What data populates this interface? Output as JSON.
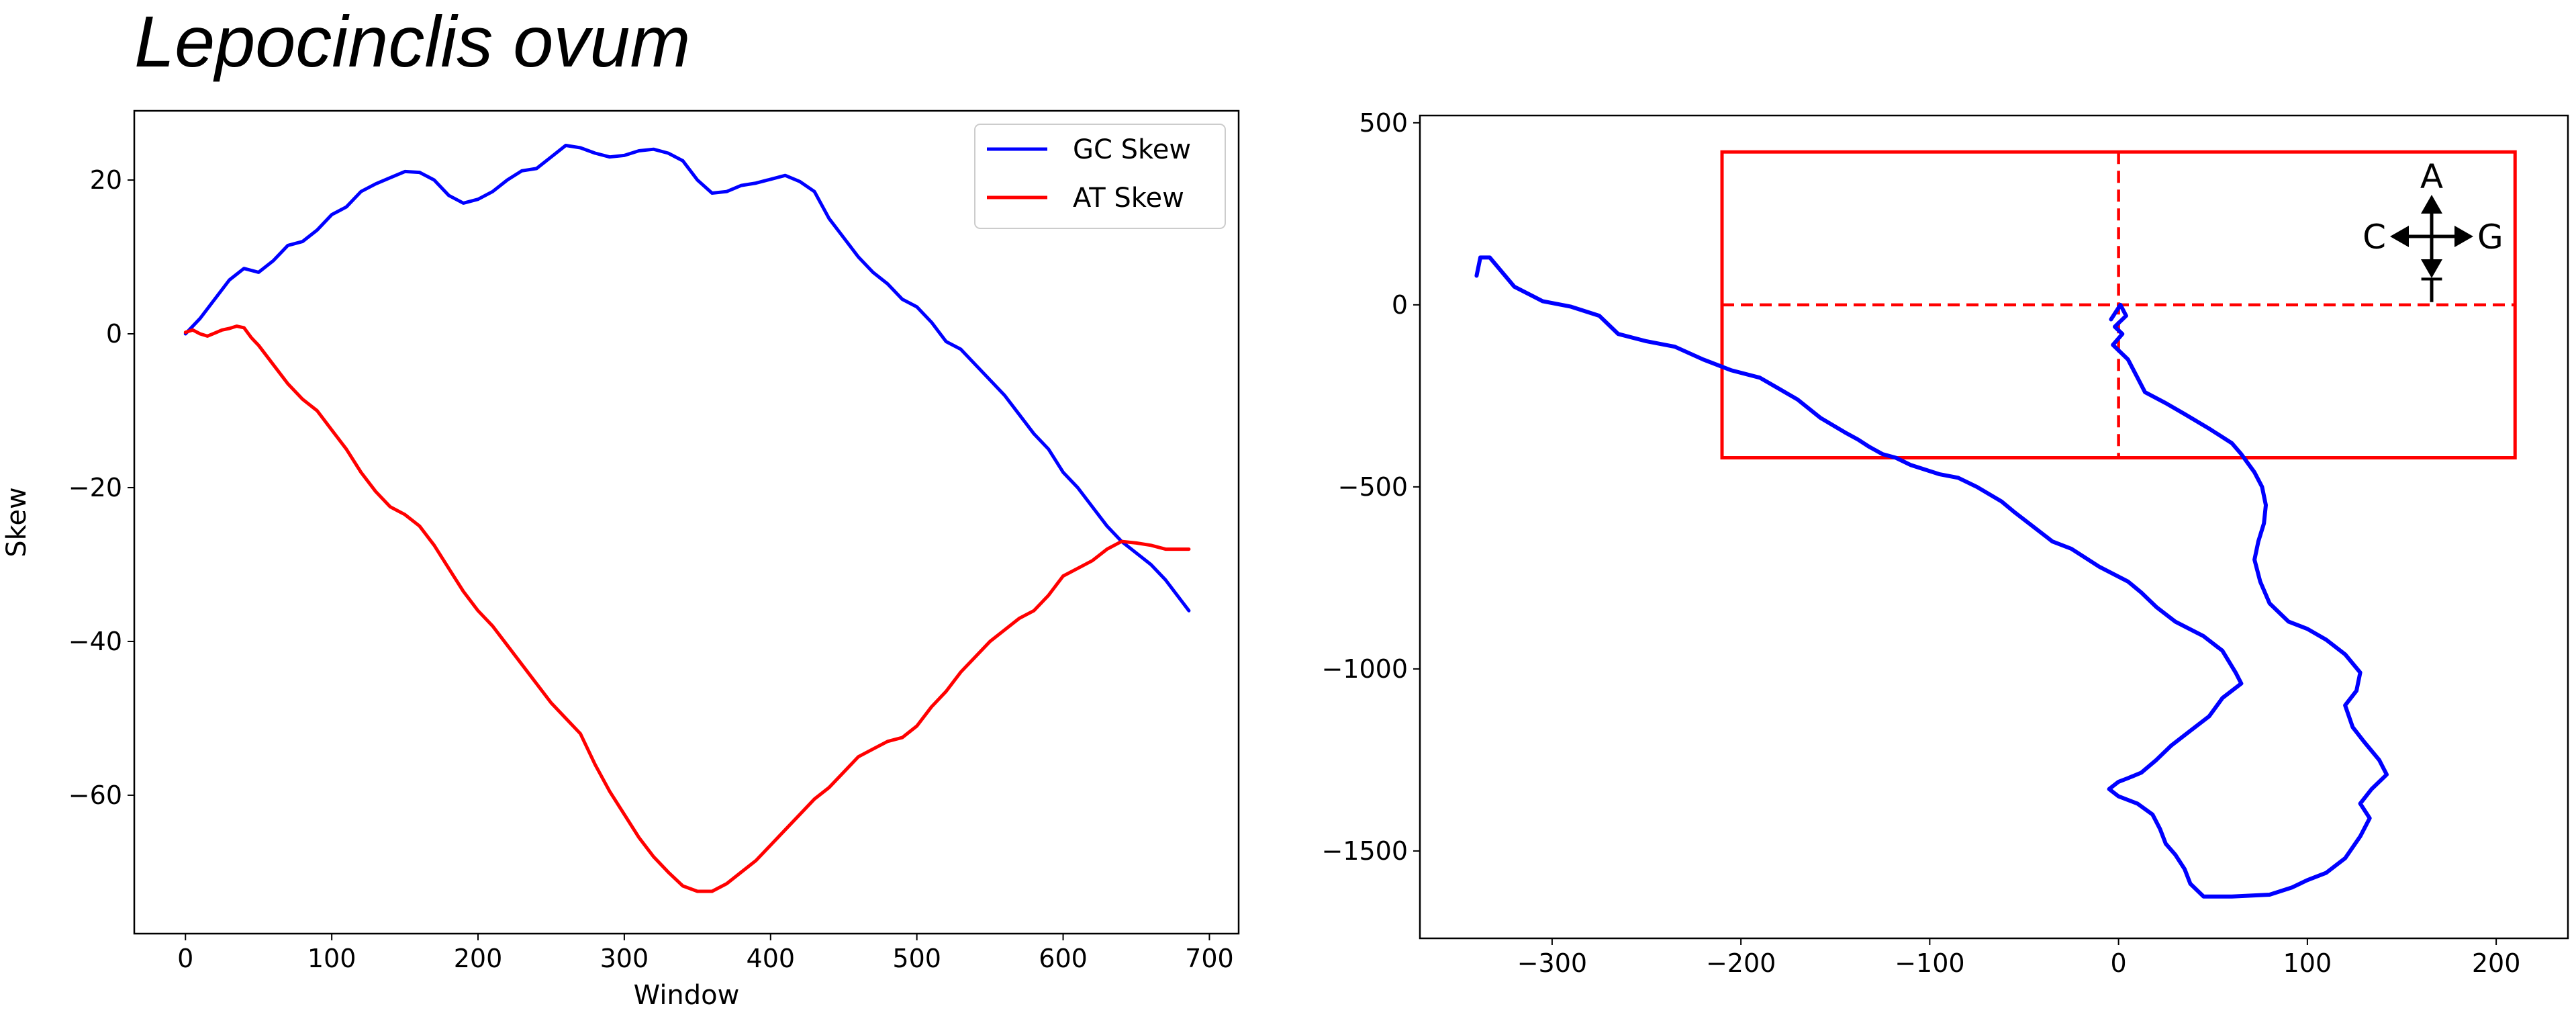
{
  "title": "Lepocinclis ovum",
  "chart_data": [
    {
      "type": "line",
      "xlabel": "Window",
      "ylabel": "Skew",
      "xlim": [
        -35,
        720
      ],
      "ylim": [
        -78,
        29
      ],
      "xticks": [
        0,
        100,
        200,
        300,
        400,
        500,
        600,
        700
      ],
      "yticks": [
        20,
        0,
        -20,
        -40,
        -60
      ],
      "xtick_labels": [
        "0",
        "100",
        "200",
        "300",
        "400",
        "500",
        "600",
        "700"
      ],
      "ytick_labels": [
        "20",
        "0",
        "−20",
        "−40",
        "−60"
      ],
      "grid": false,
      "legend": "top-right",
      "series": [
        {
          "name": "GC Skew",
          "color": "#0000ff",
          "points": [
            [
              0,
              0
            ],
            [
              10,
              2
            ],
            [
              20,
              4.5
            ],
            [
              30,
              7
            ],
            [
              40,
              8.5
            ],
            [
              50,
              8
            ],
            [
              60,
              9.5
            ],
            [
              70,
              11.5
            ],
            [
              80,
              12
            ],
            [
              90,
              13.5
            ],
            [
              100,
              15.5
            ],
            [
              110,
              16.5
            ],
            [
              120,
              18.5
            ],
            [
              130,
              19.5
            ],
            [
              140,
              20.3
            ],
            [
              150,
              21.1
            ],
            [
              160,
              21
            ],
            [
              170,
              20
            ],
            [
              180,
              18
            ],
            [
              190,
              17
            ],
            [
              200,
              17.5
            ],
            [
              210,
              18.5
            ],
            [
              220,
              20
            ],
            [
              230,
              21.2
            ],
            [
              240,
              21.5
            ],
            [
              250,
              23
            ],
            [
              260,
              24.5
            ],
            [
              270,
              24.2
            ],
            [
              280,
              23.5
            ],
            [
              290,
              23
            ],
            [
              300,
              23.2
            ],
            [
              310,
              23.8
            ],
            [
              320,
              24
            ],
            [
              330,
              23.5
            ],
            [
              340,
              22.5
            ],
            [
              350,
              20
            ],
            [
              360,
              18.3
            ],
            [
              370,
              18.5
            ],
            [
              380,
              19.3
            ],
            [
              390,
              19.6
            ],
            [
              400,
              20.1
            ],
            [
              410,
              20.6
            ],
            [
              420,
              19.8
            ],
            [
              430,
              18.5
            ],
            [
              440,
              15
            ],
            [
              450,
              12.5
            ],
            [
              460,
              10
            ],
            [
              470,
              8
            ],
            [
              480,
              6.5
            ],
            [
              490,
              4.5
            ],
            [
              500,
              3.5
            ],
            [
              510,
              1.5
            ],
            [
              520,
              -1
            ],
            [
              530,
              -2
            ],
            [
              540,
              -4
            ],
            [
              550,
              -6
            ],
            [
              560,
              -8
            ],
            [
              570,
              -10.5
            ],
            [
              580,
              -13
            ],
            [
              590,
              -15
            ],
            [
              600,
              -18
            ],
            [
              610,
              -20
            ],
            [
              620,
              -22.5
            ],
            [
              630,
              -25
            ],
            [
              640,
              -27
            ],
            [
              650,
              -28.5
            ],
            [
              660,
              -30
            ],
            [
              670,
              -32
            ],
            [
              680,
              -34.5
            ],
            [
              686,
              -36
            ]
          ]
        },
        {
          "name": "AT Skew",
          "color": "#ff0000",
          "points": [
            [
              0,
              0.2
            ],
            [
              5,
              0.5
            ],
            [
              10,
              0
            ],
            [
              15,
              -0.3
            ],
            [
              20,
              0.1
            ],
            [
              25,
              0.5
            ],
            [
              30,
              0.7
            ],
            [
              35,
              1
            ],
            [
              40,
              0.8
            ],
            [
              45,
              -0.5
            ],
            [
              50,
              -1.5
            ],
            [
              60,
              -4
            ],
            [
              70,
              -6.5
            ],
            [
              80,
              -8.5
            ],
            [
              90,
              -10
            ],
            [
              100,
              -12.5
            ],
            [
              110,
              -15
            ],
            [
              120,
              -18
            ],
            [
              130,
              -20.5
            ],
            [
              140,
              -22.5
            ],
            [
              150,
              -23.5
            ],
            [
              160,
              -25
            ],
            [
              170,
              -27.5
            ],
            [
              180,
              -30.5
            ],
            [
              190,
              -33.5
            ],
            [
              200,
              -36
            ],
            [
              210,
              -38
            ],
            [
              220,
              -40.5
            ],
            [
              230,
              -43
            ],
            [
              240,
              -45.5
            ],
            [
              250,
              -48
            ],
            [
              260,
              -50
            ],
            [
              270,
              -52
            ],
            [
              280,
              -56
            ],
            [
              290,
              -59.5
            ],
            [
              300,
              -62.5
            ],
            [
              310,
              -65.5
            ],
            [
              320,
              -68
            ],
            [
              330,
              -70
            ],
            [
              340,
              -71.8
            ],
            [
              350,
              -72.5
            ],
            [
              360,
              -72.5
            ],
            [
              370,
              -71.5
            ],
            [
              380,
              -70
            ],
            [
              390,
              -68.5
            ],
            [
              400,
              -66.5
            ],
            [
              410,
              -64.5
            ],
            [
              420,
              -62.5
            ],
            [
              430,
              -60.5
            ],
            [
              440,
              -59
            ],
            [
              450,
              -57
            ],
            [
              460,
              -55
            ],
            [
              470,
              -54
            ],
            [
              480,
              -53
            ],
            [
              490,
              -52.5
            ],
            [
              500,
              -51
            ],
            [
              510,
              -48.5
            ],
            [
              520,
              -46.5
            ],
            [
              530,
              -44
            ],
            [
              540,
              -42
            ],
            [
              550,
              -40
            ],
            [
              560,
              -38.5
            ],
            [
              570,
              -37
            ],
            [
              580,
              -36
            ],
            [
              590,
              -34
            ],
            [
              600,
              -31.5
            ],
            [
              610,
              -30.5
            ],
            [
              620,
              -29.5
            ],
            [
              630,
              -28
            ],
            [
              640,
              -27
            ],
            [
              650,
              -27.2
            ],
            [
              660,
              -27.5
            ],
            [
              670,
              -28
            ],
            [
              680,
              -28
            ],
            [
              686,
              -28
            ]
          ]
        }
      ]
    },
    {
      "type": "line",
      "xlabel": "",
      "ylabel": "",
      "xlim": [
        -370,
        238
      ],
      "ylim": [
        -1740,
        520
      ],
      "xticks": [
        -300,
        -200,
        -100,
        0,
        100,
        200
      ],
      "yticks": [
        500,
        0,
        -500,
        -1000,
        -1500
      ],
      "xtick_labels": [
        "−300",
        "−200",
        "−100",
        "0",
        "100",
        "200"
      ],
      "ytick_labels": [
        "500",
        "0",
        "−500",
        "−1000",
        "−1500"
      ],
      "grid": false,
      "box": {
        "x": [
          -210,
          210
        ],
        "y": [
          -420,
          420
        ],
        "color": "#ff0000"
      },
      "compass": [
        "A",
        "C",
        "G",
        "T"
      ],
      "series": [
        {
          "name": "",
          "color": "#0000ff",
          "points": [
            [
              -340,
              80
            ],
            [
              -338,
              130
            ],
            [
              -333,
              130
            ],
            [
              -320,
              50
            ],
            [
              -305,
              10
            ],
            [
              -290,
              -5
            ],
            [
              -275,
              -30
            ],
            [
              -265,
              -80
            ],
            [
              -250,
              -100
            ],
            [
              -235,
              -115
            ],
            [
              -220,
              -150
            ],
            [
              -205,
              -180
            ],
            [
              -190,
              -200
            ],
            [
              -180,
              -230
            ],
            [
              -170,
              -260
            ],
            [
              -158,
              -310
            ],
            [
              -145,
              -350
            ],
            [
              -138,
              -370
            ],
            [
              -132,
              -390
            ],
            [
              -125,
              -410
            ],
            [
              -118,
              -420
            ],
            [
              -110,
              -440
            ],
            [
              -95,
              -465
            ],
            [
              -85,
              -475
            ],
            [
              -75,
              -500
            ],
            [
              -62,
              -540
            ],
            [
              -55,
              -570
            ],
            [
              -45,
              -610
            ],
            [
              -35,
              -650
            ],
            [
              -25,
              -670
            ],
            [
              -10,
              -720
            ],
            [
              5,
              -760
            ],
            [
              12,
              -790
            ],
            [
              20,
              -830
            ],
            [
              30,
              -870
            ],
            [
              45,
              -910
            ],
            [
              55,
              -950
            ],
            [
              62,
              -1010
            ],
            [
              65,
              -1040
            ],
            [
              55,
              -1080
            ],
            [
              48,
              -1130
            ],
            [
              38,
              -1170
            ],
            [
              28,
              -1210
            ],
            [
              20,
              -1250
            ],
            [
              12,
              -1285
            ],
            [
              5,
              -1300
            ],
            [
              0,
              -1310
            ],
            [
              -5,
              -1330
            ],
            [
              0,
              -1350
            ],
            [
              10,
              -1370
            ],
            [
              18,
              -1400
            ],
            [
              22,
              -1440
            ],
            [
              25,
              -1480
            ],
            [
              30,
              -1510
            ],
            [
              35,
              -1550
            ],
            [
              38,
              -1590
            ],
            [
              45,
              -1625
            ],
            [
              60,
              -1625
            ],
            [
              80,
              -1620
            ],
            [
              92,
              -1600
            ],
            [
              100,
              -1580
            ],
            [
              110,
              -1560
            ],
            [
              120,
              -1520
            ],
            [
              128,
              -1460
            ],
            [
              133,
              -1410
            ],
            [
              128,
              -1370
            ],
            [
              134,
              -1330
            ],
            [
              142,
              -1290
            ],
            [
              138,
              -1250
            ],
            [
              130,
              -1200
            ],
            [
              124,
              -1160
            ],
            [
              120,
              -1100
            ],
            [
              126,
              -1060
            ],
            [
              128,
              -1010
            ],
            [
              120,
              -960
            ],
            [
              110,
              -920
            ],
            [
              100,
              -890
            ],
            [
              90,
              -870
            ],
            [
              80,
              -820
            ],
            [
              75,
              -760
            ],
            [
              72,
              -700
            ],
            [
              74,
              -650
            ],
            [
              77,
              -600
            ],
            [
              78,
              -550
            ],
            [
              76,
              -500
            ],
            [
              72,
              -460
            ],
            [
              65,
              -410
            ],
            [
              60,
              -380
            ],
            [
              48,
              -340
            ],
            [
              35,
              -300
            ],
            [
              25,
              -270
            ],
            [
              14,
              -240
            ],
            [
              10,
              -200
            ],
            [
              5,
              -150
            ],
            [
              -3,
              -110
            ],
            [
              2,
              -80
            ],
            [
              -2,
              -60
            ],
            [
              4,
              -30
            ],
            [
              1,
              0
            ],
            [
              -4,
              -40
            ]
          ]
        }
      ]
    }
  ]
}
